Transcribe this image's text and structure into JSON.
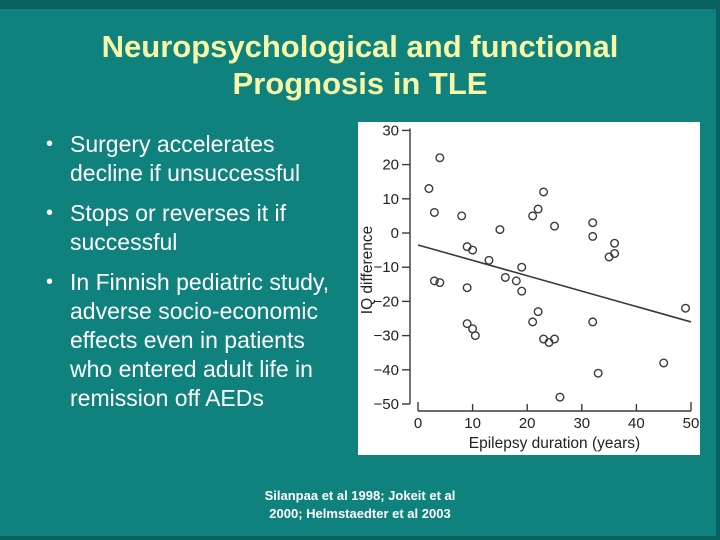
{
  "slide": {
    "title_line1": "Neuropsychological and functional",
    "title_line2": "Prognosis in TLE",
    "bullets": [
      "Surgery accelerates decline if unsuccessful",
      "Stops or reverses it if successful",
      "In Finnish pediatric study, adverse socio-economic effects even in patients who entered adult life in remission off AEDs"
    ],
    "citation_line1": "Silanpaa et al 1998; Jokeit et al",
    "citation_line2": "2000; Helmstaedter et al 2003",
    "colors": {
      "background": "#0F827E",
      "border": "#0A615F",
      "title_text": "#F7F7A8",
      "body_text": "#FFFFFF",
      "chart_ink": "#3A3A3A"
    }
  },
  "chart_data": {
    "type": "scatter",
    "title": "",
    "xlabel": "Epilepsy duration (years)",
    "ylabel": "IQ difference",
    "xlim": [
      0,
      50
    ],
    "ylim": [
      -50,
      30
    ],
    "xticks": [
      0,
      10,
      20,
      30,
      40,
      50
    ],
    "yticks": [
      30,
      20,
      10,
      0,
      -10,
      -20,
      -30,
      -40,
      -50
    ],
    "grid": false,
    "legend": "none",
    "marker": "open-circle",
    "points": [
      [
        2,
        13
      ],
      [
        4,
        22
      ],
      [
        3,
        6
      ],
      [
        8,
        5
      ],
      [
        15,
        1
      ],
      [
        21,
        5
      ],
      [
        22,
        7
      ],
      [
        23,
        12
      ],
      [
        25,
        2
      ],
      [
        32,
        3
      ],
      [
        32,
        -1
      ],
      [
        36,
        -3
      ],
      [
        35,
        -7
      ],
      [
        36,
        -6
      ],
      [
        9,
        -4
      ],
      [
        10,
        -5
      ],
      [
        13,
        -8
      ],
      [
        19,
        -10
      ],
      [
        3,
        -14
      ],
      [
        4,
        -14.5
      ],
      [
        9,
        -16
      ],
      [
        16,
        -13
      ],
      [
        18,
        -14
      ],
      [
        19,
        -17
      ],
      [
        22,
        -23
      ],
      [
        21,
        -26
      ],
      [
        9,
        -26.5
      ],
      [
        10,
        -28
      ],
      [
        10.5,
        -30
      ],
      [
        23,
        -31
      ],
      [
        24,
        -32
      ],
      [
        25,
        -31
      ],
      [
        32,
        -26
      ],
      [
        33,
        -41
      ],
      [
        26,
        -48
      ],
      [
        45,
        -38
      ],
      [
        49,
        -22
      ]
    ],
    "trendline": {
      "x1": 0,
      "y1": -3.5,
      "x2": 50,
      "y2": -26
    }
  }
}
